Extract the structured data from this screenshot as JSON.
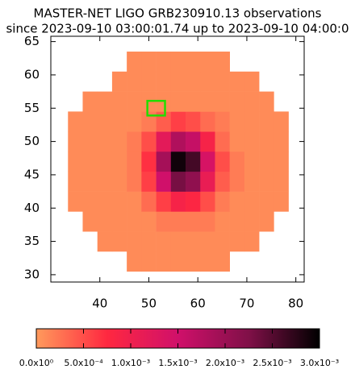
{
  "chart_data": {
    "type": "heatmap",
    "title": "MASTER-NET LIGO GRB230910.13 observations",
    "subtitle": "since 2023-09-10 03:00:01.74 up to 2023-09-10 04:00:0",
    "x": [
      35,
      38,
      41,
      44,
      47,
      50,
      53,
      56,
      59,
      62,
      65,
      68,
      71,
      74,
      77
    ],
    "y": [
      32,
      35,
      38,
      41,
      44,
      47,
      50,
      53,
      56,
      59,
      62
    ],
    "values": [
      [
        null,
        null,
        null,
        null,
        0.0001,
        0.0001,
        0.0001,
        0.0001,
        0.0001,
        0.0001,
        0.0001,
        null,
        null,
        null,
        null
      ],
      [
        null,
        null,
        0.0001,
        0.0001,
        0.0001,
        0.0001,
        0.0001,
        0.0001,
        0.0001,
        0.0001,
        0.0001,
        0.0001,
        0.0001,
        null,
        null
      ],
      [
        null,
        0.0001,
        0.0001,
        0.0001,
        0.0001,
        0.0001,
        0.0002,
        0.0002,
        0.0002,
        0.0002,
        0.0001,
        0.0001,
        0.0001,
        0.0001,
        null
      ],
      [
        0.0001,
        0.0001,
        0.0001,
        0.0001,
        0.0001,
        0.0003,
        0.0006,
        0.0009,
        0.0008,
        0.0005,
        0.0002,
        0.0001,
        0.0001,
        0.0001,
        0.0001
      ],
      [
        0.0001,
        0.0001,
        0.0001,
        0.0001,
        0.0002,
        0.0006,
        0.0015,
        0.0023,
        0.0021,
        0.0011,
        0.0004,
        0.0002,
        0.0001,
        0.0001,
        0.0001
      ],
      [
        0.0001,
        0.0001,
        0.0001,
        0.0001,
        0.0002,
        0.0007,
        0.0019,
        0.0029,
        0.0026,
        0.0014,
        0.0005,
        0.0002,
        0.0001,
        0.0001,
        0.0001
      ],
      [
        0.0001,
        0.0001,
        0.0001,
        0.0001,
        0.0002,
        0.0005,
        0.0012,
        0.0018,
        0.0016,
        0.0009,
        0.0003,
        0.0001,
        0.0001,
        0.0001,
        0.0001
      ],
      [
        0.0001,
        0.0001,
        0.0001,
        0.0001,
        0.0001,
        0.0002,
        0.0004,
        0.0006,
        0.0005,
        0.0003,
        0.0002,
        0.0001,
        0.0001,
        0.0001,
        0.0001
      ],
      [
        null,
        0.0001,
        0.0001,
        0.0001,
        0.0001,
        0.0001,
        0.0001,
        0.0001,
        0.0001,
        0.0001,
        0.0001,
        0.0001,
        0.0001,
        0.0001,
        null
      ],
      [
        null,
        null,
        null,
        0.0001,
        0.0001,
        0.0001,
        0.0001,
        0.0001,
        0.0001,
        0.0001,
        0.0001,
        0.0001,
        0.0001,
        null,
        null
      ],
      [
        null,
        null,
        null,
        null,
        0.0001,
        0.0001,
        0.0001,
        0.0001,
        0.0001,
        0.0001,
        0.0001,
        null,
        null,
        null,
        null
      ]
    ],
    "xlim": [
      30,
      81.7
    ],
    "ylim": [
      28.9,
      65.8
    ],
    "xticks": [
      40,
      50,
      60,
      70,
      80
    ],
    "yticks": [
      30,
      35,
      40,
      45,
      50,
      55,
      60,
      65
    ],
    "clim": [
      0,
      0.003
    ],
    "colormap": [
      "#ff9a5c",
      "#ff2840",
      "#d0106a",
      "#801048",
      "#000000"
    ],
    "cticks": [
      {
        "value": 0,
        "label": "0.0x10⁰"
      },
      {
        "value": 0.0005,
        "label": "5.0x10⁻⁴"
      },
      {
        "value": 0.001,
        "label": "1.0x10⁻³"
      },
      {
        "value": 0.0015,
        "label": "1.5x10⁻³"
      },
      {
        "value": 0.002,
        "label": "2.0x10⁻³"
      },
      {
        "value": 0.0025,
        "label": "2.5x10⁻³"
      },
      {
        "value": 0.003,
        "label": "3.0x10⁻³"
      }
    ],
    "highlight": {
      "x": [
        49.7,
        53.3
      ],
      "y": [
        53.9,
        56.1
      ],
      "color": "#22dd00"
    }
  }
}
